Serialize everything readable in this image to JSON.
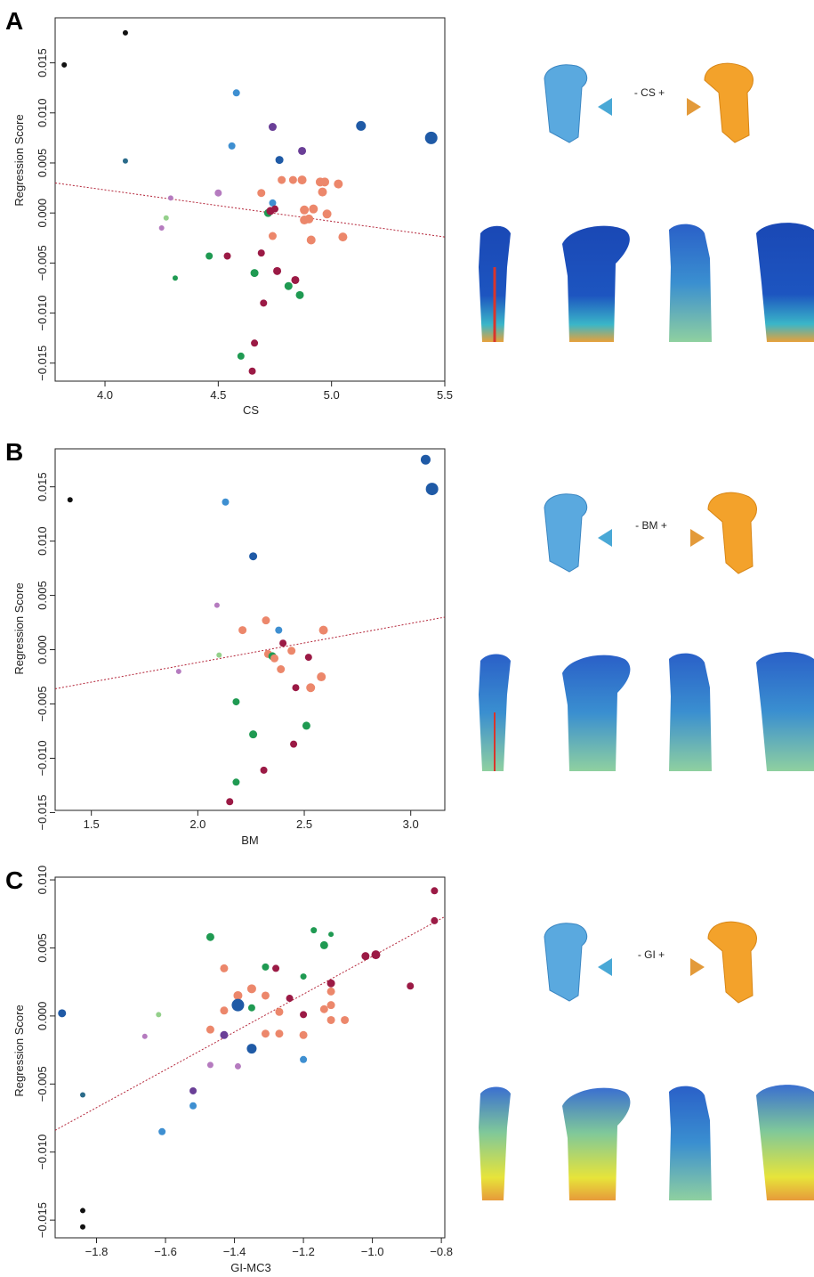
{
  "panels": [
    {
      "label": "A",
      "xlabel": "CS",
      "ylabel": "Regression Score",
      "arrow_label": "- CS +",
      "chart_data": {
        "type": "scatter",
        "xlim": [
          3.78,
          5.5
        ],
        "ylim": [
          -0.0168,
          0.0195
        ],
        "xticks": [
          4.0,
          4.5,
          5.0,
          5.5
        ],
        "xtick_labels": [
          "4.0",
          "4.5",
          "5.0",
          "5.5"
        ],
        "yticks": [
          0.015,
          0.01,
          0.005,
          0.0,
          -0.005,
          -0.01,
          -0.015
        ],
        "ytick_labels": [
          "0.015",
          "0.010",
          "0.005",
          "0.000",
          "−0.005",
          "−0.010",
          "−0.015"
        ],
        "trendline": {
          "x": [
            3.78,
            5.5
          ],
          "y": [
            0.003,
            -0.0024
          ]
        },
        "points": [
          {
            "x": 3.82,
            "y": 0.0148,
            "c": "black",
            "s": 3
          },
          {
            "x": 4.09,
            "y": 0.018,
            "c": "black",
            "s": 3
          },
          {
            "x": 4.09,
            "y": 0.0052,
            "c": "teal",
            "s": 3
          },
          {
            "x": 4.29,
            "y": 0.0015,
            "c": "mauve",
            "s": 3
          },
          {
            "x": 4.27,
            "y": -0.0005,
            "c": "lightgreen",
            "s": 3
          },
          {
            "x": 4.25,
            "y": -0.0015,
            "c": "mauve",
            "s": 3
          },
          {
            "x": 4.31,
            "y": -0.0065,
            "c": "green",
            "s": 3
          },
          {
            "x": 4.46,
            "y": -0.0043,
            "c": "green",
            "s": 4
          },
          {
            "x": 4.5,
            "y": 0.002,
            "c": "mauve",
            "s": 4
          },
          {
            "x": 4.54,
            "y": -0.0043,
            "c": "maroon",
            "s": 4
          },
          {
            "x": 4.56,
            "y": 0.0067,
            "c": "lightblue",
            "s": 4
          },
          {
            "x": 4.58,
            "y": 0.012,
            "c": "lightblue",
            "s": 4
          },
          {
            "x": 4.6,
            "y": -0.0143,
            "c": "green",
            "s": 4
          },
          {
            "x": 4.65,
            "y": -0.0158,
            "c": "maroon",
            "s": 4
          },
          {
            "x": 4.66,
            "y": -0.013,
            "c": "maroon",
            "s": 4
          },
          {
            "x": 4.66,
            "y": -0.006,
            "c": "green",
            "s": 4.5
          },
          {
            "x": 4.69,
            "y": 0.002,
            "c": "salmon",
            "s": 4.5
          },
          {
            "x": 4.69,
            "y": -0.004,
            "c": "maroon",
            "s": 4
          },
          {
            "x": 4.7,
            "y": -0.009,
            "c": "maroon",
            "s": 4
          },
          {
            "x": 4.72,
            "y": 0.0,
            "c": "green",
            "s": 4.5
          },
          {
            "x": 4.73,
            "y": 0.0002,
            "c": "maroon",
            "s": 4.5
          },
          {
            "x": 4.74,
            "y": 0.001,
            "c": "lightblue",
            "s": 4
          },
          {
            "x": 4.74,
            "y": 0.0086,
            "c": "purple",
            "s": 4.5
          },
          {
            "x": 4.74,
            "y": -0.0023,
            "c": "salmon",
            "s": 4.5
          },
          {
            "x": 4.75,
            "y": 0.0004,
            "c": "maroon",
            "s": 4
          },
          {
            "x": 4.76,
            "y": -0.0058,
            "c": "maroon",
            "s": 4.5
          },
          {
            "x": 4.77,
            "y": 0.0053,
            "c": "blue",
            "s": 4.5
          },
          {
            "x": 4.78,
            "y": 0.0033,
            "c": "salmon",
            "s": 4.5
          },
          {
            "x": 4.81,
            "y": -0.0073,
            "c": "green",
            "s": 4.5
          },
          {
            "x": 4.83,
            "y": 0.0033,
            "c": "salmon",
            "s": 4.5
          },
          {
            "x": 4.84,
            "y": -0.0067,
            "c": "maroon",
            "s": 4.5
          },
          {
            "x": 4.86,
            "y": -0.0082,
            "c": "green",
            "s": 4.5
          },
          {
            "x": 4.87,
            "y": 0.0062,
            "c": "purple",
            "s": 4.5
          },
          {
            "x": 4.87,
            "y": 0.0033,
            "c": "salmon",
            "s": 5
          },
          {
            "x": 4.88,
            "y": 0.0003,
            "c": "salmon",
            "s": 5
          },
          {
            "x": 4.88,
            "y": -0.0007,
            "c": "salmon",
            "s": 5
          },
          {
            "x": 4.9,
            "y": -0.0006,
            "c": "salmon",
            "s": 5
          },
          {
            "x": 4.91,
            "y": -0.0027,
            "c": "salmon",
            "s": 5
          },
          {
            "x": 4.92,
            "y": 0.0004,
            "c": "salmon",
            "s": 5
          },
          {
            "x": 4.95,
            "y": 0.0031,
            "c": "salmon",
            "s": 5
          },
          {
            "x": 4.96,
            "y": 0.0021,
            "c": "salmon",
            "s": 5
          },
          {
            "x": 4.97,
            "y": 0.0031,
            "c": "salmon",
            "s": 5
          },
          {
            "x": 4.98,
            "y": -0.0001,
            "c": "salmon",
            "s": 5
          },
          {
            "x": 5.03,
            "y": 0.0029,
            "c": "salmon",
            "s": 5
          },
          {
            "x": 5.05,
            "y": -0.0024,
            "c": "salmon",
            "s": 5
          },
          {
            "x": 5.13,
            "y": 0.0087,
            "c": "blue",
            "s": 5.5
          },
          {
            "x": 5.44,
            "y": 0.0075,
            "c": "blue",
            "s": 7
          }
        ]
      }
    },
    {
      "label": "B",
      "xlabel": "BM",
      "ylabel": "Regression Score",
      "arrow_label": "- BM +",
      "chart_data": {
        "type": "scatter",
        "xlim": [
          1.33,
          3.16
        ],
        "ylim": [
          -0.0148,
          0.0185
        ],
        "xticks": [
          1.5,
          2.0,
          2.5,
          3.0
        ],
        "xtick_labels": [
          "1.5",
          "2.0",
          "2.5",
          "3.0"
        ],
        "yticks": [
          0.015,
          0.01,
          0.005,
          0.0,
          -0.005,
          -0.01,
          -0.015
        ],
        "ytick_labels": [
          "0.015",
          "0.010",
          "0.005",
          "0.000",
          "−0.005",
          "−0.010",
          "−0.015"
        ],
        "trendline": {
          "x": [
            1.33,
            3.16
          ],
          "y": [
            -0.0036,
            0.003
          ]
        },
        "points": [
          {
            "x": 1.4,
            "y": 0.0138,
            "c": "black",
            "s": 3
          },
          {
            "x": 1.91,
            "y": -0.002,
            "c": "mauve",
            "s": 3
          },
          {
            "x": 2.09,
            "y": 0.0041,
            "c": "mauve",
            "s": 3
          },
          {
            "x": 2.1,
            "y": -0.0005,
            "c": "lightgreen",
            "s": 3
          },
          {
            "x": 2.13,
            "y": 0.0136,
            "c": "lightblue",
            "s": 4
          },
          {
            "x": 2.15,
            "y": -0.014,
            "c": "maroon",
            "s": 4
          },
          {
            "x": 2.18,
            "y": -0.0122,
            "c": "green",
            "s": 4
          },
          {
            "x": 2.18,
            "y": -0.0048,
            "c": "green",
            "s": 4
          },
          {
            "x": 2.21,
            "y": 0.0018,
            "c": "salmon",
            "s": 4.5
          },
          {
            "x": 2.26,
            "y": 0.0086,
            "c": "blue",
            "s": 4.5
          },
          {
            "x": 2.26,
            "y": -0.0078,
            "c": "green",
            "s": 4.5
          },
          {
            "x": 2.31,
            "y": -0.0111,
            "c": "maroon",
            "s": 4
          },
          {
            "x": 2.32,
            "y": 0.0027,
            "c": "salmon",
            "s": 4.5
          },
          {
            "x": 2.33,
            "y": -0.0004,
            "c": "salmon",
            "s": 4.5
          },
          {
            "x": 2.35,
            "y": -0.0006,
            "c": "green",
            "s": 4.5
          },
          {
            "x": 2.36,
            "y": -0.0008,
            "c": "salmon",
            "s": 4.5
          },
          {
            "x": 2.38,
            "y": 0.0018,
            "c": "lightblue",
            "s": 4
          },
          {
            "x": 2.39,
            "y": -0.0018,
            "c": "salmon",
            "s": 4.5
          },
          {
            "x": 2.4,
            "y": 0.0006,
            "c": "maroon",
            "s": 4
          },
          {
            "x": 2.44,
            "y": -0.0001,
            "c": "salmon",
            "s": 4.5
          },
          {
            "x": 2.45,
            "y": -0.0087,
            "c": "maroon",
            "s": 4
          },
          {
            "x": 2.46,
            "y": -0.0035,
            "c": "maroon",
            "s": 4
          },
          {
            "x": 2.51,
            "y": -0.007,
            "c": "green",
            "s": 4.5
          },
          {
            "x": 2.52,
            "y": -0.0007,
            "c": "maroon",
            "s": 4
          },
          {
            "x": 2.53,
            "y": -0.0035,
            "c": "salmon",
            "s": 5
          },
          {
            "x": 2.58,
            "y": -0.0025,
            "c": "salmon",
            "s": 5
          },
          {
            "x": 2.59,
            "y": 0.0018,
            "c": "salmon",
            "s": 5
          },
          {
            "x": 3.07,
            "y": 0.0175,
            "c": "blue",
            "s": 5.5
          },
          {
            "x": 3.1,
            "y": 0.0148,
            "c": "blue",
            "s": 7
          }
        ]
      }
    },
    {
      "label": "C",
      "xlabel": "GI-MC3",
      "ylabel": "Regression Score",
      "arrow_label": "- GI +",
      "chart_data": {
        "type": "scatter",
        "xlim": [
          -1.92,
          -0.79
        ],
        "ylim": [
          -0.0163,
          0.0102
        ],
        "xticks": [
          -1.8,
          -1.6,
          -1.4,
          -1.2,
          -1.0,
          -0.8
        ],
        "xtick_labels": [
          "−1.8",
          "−1.6",
          "−1.4",
          "−1.2",
          "−1.0",
          "−0.8"
        ],
        "yticks": [
          0.01,
          0.005,
          0.0,
          -0.005,
          -0.01,
          -0.015
        ],
        "ytick_labels": [
          "0.010",
          "0.005",
          "0.000",
          "−0.005",
          "−0.010",
          "−0.015"
        ],
        "trendline": {
          "x": [
            -1.92,
            -0.79
          ],
          "y": [
            -0.0084,
            0.0073
          ]
        },
        "points": [
          {
            "x": -1.9,
            "y": 0.0002,
            "c": "blue",
            "s": 4.5
          },
          {
            "x": -1.84,
            "y": -0.0058,
            "c": "teal",
            "s": 3
          },
          {
            "x": -1.84,
            "y": -0.0143,
            "c": "black",
            "s": 3
          },
          {
            "x": -1.84,
            "y": -0.0155,
            "c": "black",
            "s": 3
          },
          {
            "x": -1.66,
            "y": -0.0015,
            "c": "mauve",
            "s": 3
          },
          {
            "x": -1.62,
            "y": 0.0001,
            "c": "lightgreen",
            "s": 3
          },
          {
            "x": -1.61,
            "y": -0.0085,
            "c": "lightblue",
            "s": 4
          },
          {
            "x": -1.52,
            "y": -0.0055,
            "c": "purple",
            "s": 4
          },
          {
            "x": -1.52,
            "y": -0.0066,
            "c": "lightblue",
            "s": 4
          },
          {
            "x": -1.47,
            "y": 0.0058,
            "c": "green",
            "s": 4.5
          },
          {
            "x": -1.47,
            "y": -0.001,
            "c": "salmon",
            "s": 4.5
          },
          {
            "x": -1.47,
            "y": -0.0036,
            "c": "mauve",
            "s": 3.5
          },
          {
            "x": -1.43,
            "y": 0.0035,
            "c": "salmon",
            "s": 4.5
          },
          {
            "x": -1.43,
            "y": 0.0004,
            "c": "salmon",
            "s": 4.5
          },
          {
            "x": -1.43,
            "y": -0.0014,
            "c": "purple",
            "s": 4.5
          },
          {
            "x": -1.39,
            "y": 0.0015,
            "c": "salmon",
            "s": 5
          },
          {
            "x": -1.39,
            "y": 0.0008,
            "c": "blue",
            "s": 7
          },
          {
            "x": -1.39,
            "y": -0.0037,
            "c": "mauve",
            "s": 3.5
          },
          {
            "x": -1.35,
            "y": 0.002,
            "c": "salmon",
            "s": 5
          },
          {
            "x": -1.35,
            "y": 0.0006,
            "c": "green",
            "s": 4
          },
          {
            "x": -1.35,
            "y": -0.0024,
            "c": "blue",
            "s": 5.5
          },
          {
            "x": -1.31,
            "y": 0.0036,
            "c": "green",
            "s": 4
          },
          {
            "x": -1.31,
            "y": 0.0015,
            "c": "salmon",
            "s": 4.5
          },
          {
            "x": -1.31,
            "y": -0.0013,
            "c": "salmon",
            "s": 4.5
          },
          {
            "x": -1.28,
            "y": 0.0035,
            "c": "maroon",
            "s": 4
          },
          {
            "x": -1.27,
            "y": 0.0003,
            "c": "salmon",
            "s": 4.5
          },
          {
            "x": -1.27,
            "y": -0.0013,
            "c": "salmon",
            "s": 4.5
          },
          {
            "x": -1.24,
            "y": 0.0013,
            "c": "maroon",
            "s": 4
          },
          {
            "x": -1.2,
            "y": 0.0029,
            "c": "green",
            "s": 3.5
          },
          {
            "x": -1.2,
            "y": 0.0001,
            "c": "maroon",
            "s": 4
          },
          {
            "x": -1.2,
            "y": -0.0014,
            "c": "salmon",
            "s": 4.5
          },
          {
            "x": -1.2,
            "y": -0.0032,
            "c": "lightblue",
            "s": 4
          },
          {
            "x": -1.17,
            "y": 0.0063,
            "c": "green",
            "s": 3.5
          },
          {
            "x": -1.14,
            "y": 0.0052,
            "c": "green",
            "s": 4.5
          },
          {
            "x": -1.14,
            "y": 0.0005,
            "c": "salmon",
            "s": 4.5
          },
          {
            "x": -1.12,
            "y": 0.006,
            "c": "green",
            "s": 3
          },
          {
            "x": -1.12,
            "y": 0.0024,
            "c": "maroon",
            "s": 4.5
          },
          {
            "x": -1.12,
            "y": 0.0018,
            "c": "salmon",
            "s": 4.5
          },
          {
            "x": -1.12,
            "y": 0.0008,
            "c": "salmon",
            "s": 4.5
          },
          {
            "x": -1.12,
            "y": -0.0003,
            "c": "salmon",
            "s": 4.5
          },
          {
            "x": -1.08,
            "y": -0.0003,
            "c": "salmon",
            "s": 4.5
          },
          {
            "x": -1.02,
            "y": 0.0044,
            "c": "maroon",
            "s": 4.5
          },
          {
            "x": -0.99,
            "y": 0.0045,
            "c": "maroon",
            "s": 5
          },
          {
            "x": -0.89,
            "y": 0.0022,
            "c": "maroon",
            "s": 4
          },
          {
            "x": -0.82,
            "y": 0.0092,
            "c": "maroon",
            "s": 4
          },
          {
            "x": -0.82,
            "y": 0.007,
            "c": "maroon",
            "s": 4
          }
        ]
      }
    }
  ],
  "colors": {
    "black": "#111111",
    "blue": "#1f5aa6",
    "lightblue": "#3e8fd1",
    "teal": "#2a6b8a",
    "purple": "#6a3f97",
    "mauve": "#b57bbf",
    "salmon": "#ec876b",
    "maroon": "#9b1a45",
    "green": "#1f9a52",
    "lightgreen": "#94d08b",
    "trendline": "#b4263a",
    "arrow_left": "#49a8d6",
    "arrow_right": "#e39a3a",
    "bone_blue": "#5aa9df",
    "bone_orange": "#f3a22b",
    "heat_base": "#1a48b5",
    "heat_mid": "#3ab6c8",
    "heat_hi": "#e7e43a",
    "heat_max": "#d9352b"
  }
}
